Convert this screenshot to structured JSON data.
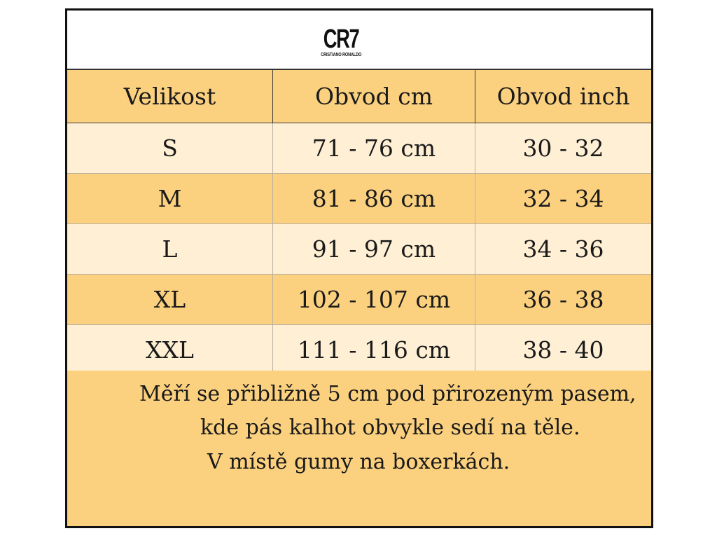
{
  "logo": {
    "main": "CR7",
    "sub": "CRISTIANO RONALDO"
  },
  "table": {
    "headers": [
      "Velikost",
      "Obvod cm",
      "Obvod inch"
    ],
    "rows": [
      [
        "S",
        "71 - 76 cm",
        "30 - 32"
      ],
      [
        "M",
        "81 - 86 cm",
        "32 - 34"
      ],
      [
        "L",
        "91 - 97 cm",
        "34 - 36"
      ],
      [
        "XL",
        "102 - 107 cm",
        "36 - 38"
      ],
      [
        "XXL",
        "111 - 116 cm",
        "38 - 40"
      ]
    ]
  },
  "note": {
    "lines": [
      "Měří se přibližně 5 cm pod přirozeným pasem,",
      "kde pás kalhot obvykle sedí na těle.",
      "V místě gumy na boxerkách."
    ]
  },
  "colors": {
    "dark_row": "#fbd17f",
    "light_row": "#fff0d5",
    "border": "#111111"
  }
}
